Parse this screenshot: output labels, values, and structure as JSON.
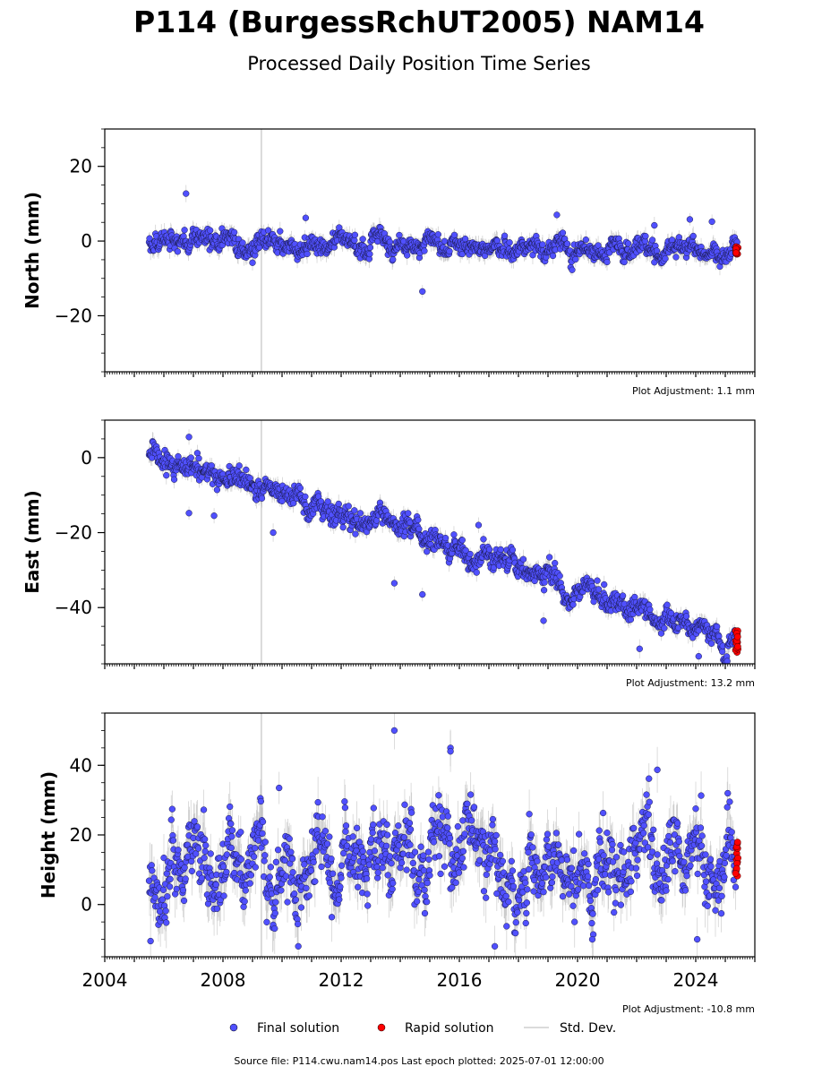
{
  "title": "P114 (BurgessRchUT2005) NAM14",
  "subtitle": "Processed Daily Position Time Series",
  "source_text": "Source file: P114.cwu.nam14.pos  Last epoch plotted: 2025-07-01 12:00:00",
  "legend": {
    "final": "Final solution",
    "rapid": "Rapid solution",
    "std": "Std. Dev."
  },
  "colors": {
    "final": "#5050ff",
    "rapid": "#ff0000",
    "std": "#b0b0b0",
    "vline": "#d0d0d0"
  },
  "chart_data": [
    {
      "type": "scatter",
      "ylabel": "North (mm)",
      "adjustment": "Plot Adjustment: 1.1 mm",
      "xlim": [
        2004,
        2026
      ],
      "ylim": [
        -35,
        30
      ],
      "yticks": [
        -20,
        0,
        20
      ],
      "trend": {
        "start_year": 2005.5,
        "end_year": 2025.4,
        "start": 0.0,
        "end": -2.5
      },
      "scatter_mm": 1.6,
      "sigma_mm": 2.0,
      "rapid_range": [
        -3.5,
        -1.5
      ],
      "vertical_line_year": 2009.3,
      "outliers": [
        {
          "x": 2006.75,
          "y": 12.7
        },
        {
          "x": 2014.75,
          "y": -13.5
        },
        {
          "x": 2009.0,
          "y": -5.8
        },
        {
          "x": 2019.3,
          "y": 7.0
        },
        {
          "x": 2022.6,
          "y": 4.2
        },
        {
          "x": 2023.8,
          "y": 5.8
        },
        {
          "x": 2024.55,
          "y": 5.2
        },
        {
          "x": 2010.8,
          "y": 6.2
        }
      ]
    },
    {
      "type": "scatter",
      "ylabel": "East (mm)",
      "adjustment": "Plot Adjustment: 13.2 mm",
      "xlim": [
        2004,
        2026
      ],
      "ylim": [
        -55,
        10
      ],
      "yticks": [
        -40,
        -20,
        0
      ],
      "trend": {
        "start_year": 2005.5,
        "end_year": 2025.4,
        "start": 1.0,
        "end": -48.5
      },
      "scatter_mm": 1.8,
      "sigma_mm": 2.0,
      "rapid_range": [
        -52,
        -46
      ],
      "vertical_line_year": 2009.3,
      "outliers": [
        {
          "x": 2006.85,
          "y": 5.5
        },
        {
          "x": 2006.85,
          "y": -14.8
        },
        {
          "x": 2007.7,
          "y": -15.5
        },
        {
          "x": 2009.7,
          "y": -20.0
        },
        {
          "x": 2013.8,
          "y": -33.5
        },
        {
          "x": 2014.75,
          "y": -36.5
        },
        {
          "x": 2016.65,
          "y": -18.0
        },
        {
          "x": 2018.85,
          "y": -43.5
        },
        {
          "x": 2022.1,
          "y": -51.0
        },
        {
          "x": 2024.1,
          "y": -53.0
        }
      ]
    },
    {
      "type": "scatter",
      "ylabel": "Height (mm)",
      "adjustment": "Plot Adjustment: -10.8 mm",
      "xlim": [
        2004,
        2026
      ],
      "ylim": [
        -15,
        55
      ],
      "yticks": [
        0,
        20,
        40
      ],
      "xticks": [
        2004,
        2008,
        2012,
        2016,
        2020,
        2024
      ],
      "trend": {
        "start_year": 2005.5,
        "end_year": 2025.4,
        "start": 11.0,
        "end": 11.0
      },
      "scatter_mm": 6.5,
      "sigma_mm": 6.0,
      "rapid_range": [
        8,
        18
      ],
      "vertical_line_year": 2009.3,
      "outliers": [
        {
          "x": 2013.8,
          "y": 50.0
        },
        {
          "x": 2015.7,
          "y": 45.0
        },
        {
          "x": 2015.7,
          "y": 44.0
        },
        {
          "x": 2022.7,
          "y": 38.7
        },
        {
          "x": 2005.55,
          "y": -10.5
        },
        {
          "x": 2017.2,
          "y": -12.0
        },
        {
          "x": 2010.55,
          "y": -12.0
        },
        {
          "x": 2020.5,
          "y": -10.0
        },
        {
          "x": 2024.05,
          "y": -10.0
        },
        {
          "x": 2009.9,
          "y": 33.5
        }
      ]
    }
  ]
}
